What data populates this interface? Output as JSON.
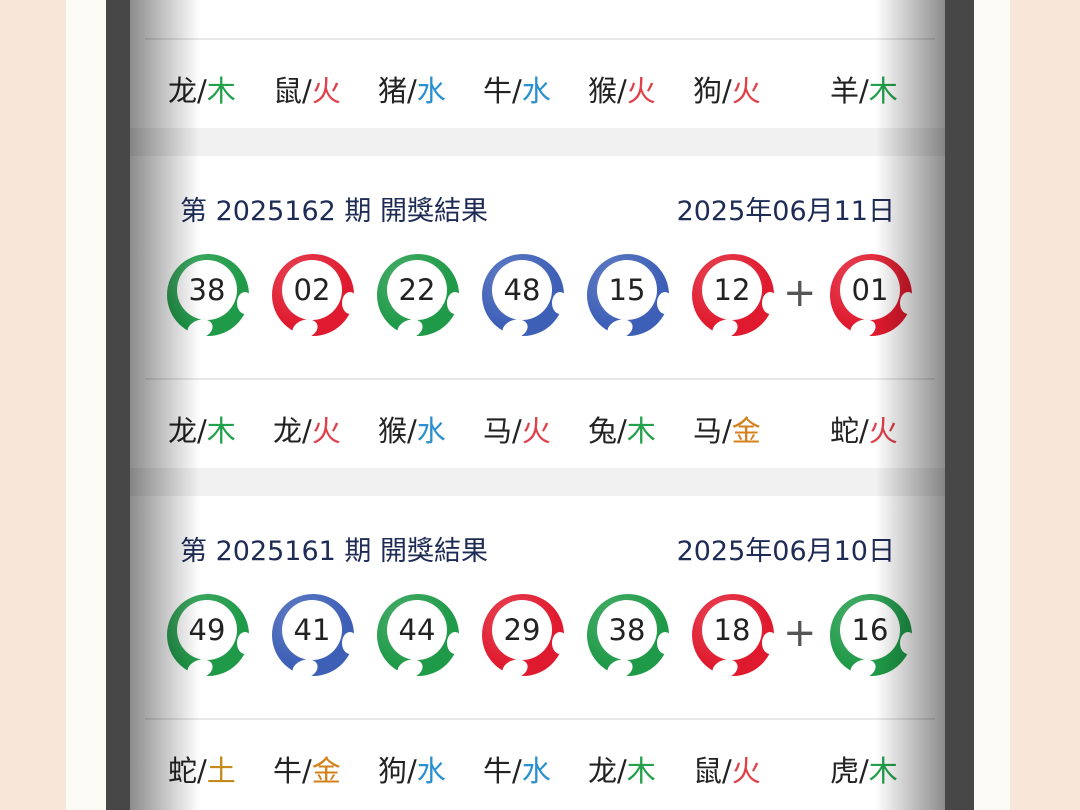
{
  "colors": {
    "green": "#1f9a48",
    "red": "#e01a2e",
    "blue": "#3d5fb6",
    "wood": "#22a04b",
    "fire": "#e0404a",
    "water": "#2a90d0",
    "metal": "#d4801a",
    "earth": "#c58a1a"
  },
  "top_zodiac": [
    [
      "龙",
      "木"
    ],
    [
      "鼠",
      "火"
    ],
    [
      "猪",
      "水"
    ],
    [
      "牛",
      "水"
    ],
    [
      "猴",
      "火"
    ],
    [
      "狗",
      "火"
    ],
    [
      "羊",
      "木"
    ]
  ],
  "draws": [
    {
      "issue": "第 2025162 期  開獎結果",
      "date": "2025年06月11日",
      "plus": "+",
      "balls": [
        [
          "38",
          "green"
        ],
        [
          "02",
          "red"
        ],
        [
          "22",
          "green"
        ],
        [
          "48",
          "blue"
        ],
        [
          "15",
          "blue"
        ],
        [
          "12",
          "red"
        ],
        [
          "01",
          "red"
        ]
      ],
      "zodiac": [
        [
          "龙",
          "木"
        ],
        [
          "龙",
          "火"
        ],
        [
          "猴",
          "水"
        ],
        [
          "马",
          "火"
        ],
        [
          "兔",
          "木"
        ],
        [
          "马",
          "金"
        ],
        [
          "蛇",
          "火"
        ]
      ]
    },
    {
      "issue": "第 2025161 期  開獎結果",
      "date": "2025年06月10日",
      "plus": "+",
      "balls": [
        [
          "49",
          "green"
        ],
        [
          "41",
          "blue"
        ],
        [
          "44",
          "green"
        ],
        [
          "29",
          "red"
        ],
        [
          "38",
          "green"
        ],
        [
          "18",
          "red"
        ],
        [
          "16",
          "green"
        ]
      ],
      "zodiac": [
        [
          "蛇",
          "土"
        ],
        [
          "牛",
          "金"
        ],
        [
          "狗",
          "水"
        ],
        [
          "牛",
          "水"
        ],
        [
          "龙",
          "木"
        ],
        [
          "鼠",
          "火"
        ],
        [
          "虎",
          "木"
        ]
      ]
    }
  ]
}
